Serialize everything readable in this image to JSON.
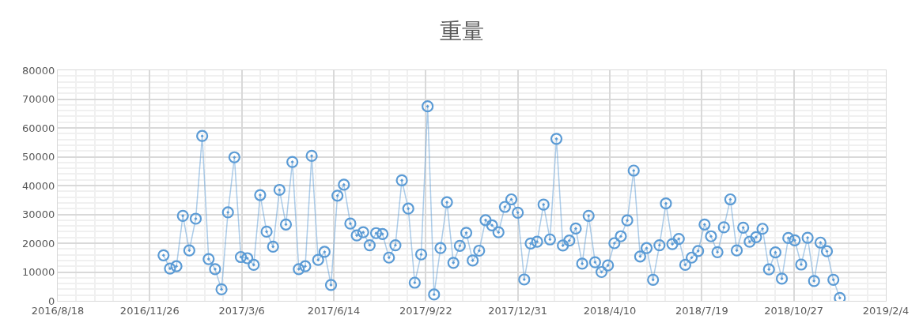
{
  "chart_data": {
    "type": "line",
    "title": "重量",
    "x": [
      "2016-12-11",
      "2016-12-18",
      "2016-12-25",
      "2017-01-01",
      "2017-01-08",
      "2017-01-15",
      "2017-01-22",
      "2017-01-29",
      "2017-02-05",
      "2017-02-12",
      "2017-02-19",
      "2017-02-26",
      "2017-03-05",
      "2017-03-12",
      "2017-03-19",
      "2017-03-26",
      "2017-04-02",
      "2017-04-09",
      "2017-04-16",
      "2017-04-23",
      "2017-04-30",
      "2017-05-07",
      "2017-05-14",
      "2017-05-21",
      "2017-05-28",
      "2017-06-04",
      "2017-06-11",
      "2017-06-18",
      "2017-06-25",
      "2017-07-02",
      "2017-07-09",
      "2017-07-16",
      "2017-07-23",
      "2017-07-30",
      "2017-08-06",
      "2017-08-13",
      "2017-08-20",
      "2017-08-27",
      "2017-09-03",
      "2017-09-10",
      "2017-09-17",
      "2017-09-24",
      "2017-10-01",
      "2017-10-08",
      "2017-10-15",
      "2017-10-22",
      "2017-10-29",
      "2017-11-05",
      "2017-11-12",
      "2017-11-19",
      "2017-11-26",
      "2017-12-03",
      "2017-12-10",
      "2017-12-17",
      "2017-12-24",
      "2017-12-31",
      "2018-01-07",
      "2018-01-14",
      "2018-01-21",
      "2018-01-28",
      "2018-02-04",
      "2018-02-11",
      "2018-02-18",
      "2018-02-25",
      "2018-03-04",
      "2018-03-11",
      "2018-03-18",
      "2018-03-25",
      "2018-04-01",
      "2018-04-08",
      "2018-04-15",
      "2018-04-22",
      "2018-04-29",
      "2018-05-06",
      "2018-05-13",
      "2018-05-20",
      "2018-05-27",
      "2018-06-03",
      "2018-06-10",
      "2018-06-17",
      "2018-06-24",
      "2018-07-01",
      "2018-07-08",
      "2018-07-15",
      "2018-07-22",
      "2018-07-29",
      "2018-08-05",
      "2018-08-12",
      "2018-08-19",
      "2018-08-26",
      "2018-09-02",
      "2018-09-09",
      "2018-09-16",
      "2018-09-23",
      "2018-09-30",
      "2018-10-07",
      "2018-10-14",
      "2018-10-21",
      "2018-10-28",
      "2018-11-04",
      "2018-11-11",
      "2018-11-18",
      "2018-11-25",
      "2018-12-02",
      "2018-12-09",
      "2018-12-16"
    ],
    "series": [
      {
        "color": "#5b9bd5",
        "values": [
          15800,
          11200,
          12000,
          29500,
          17500,
          28500,
          57200,
          14500,
          11000,
          4000,
          30700,
          49800,
          15200,
          14800,
          12500,
          36700,
          24000,
          18800,
          38500,
          26500,
          48200,
          11000,
          12000,
          50300,
          14200,
          17000,
          5500,
          36500,
          40300,
          26800,
          22700,
          23800,
          19300,
          23500,
          23200,
          15000,
          19300,
          41800,
          32000,
          6300,
          16100,
          67500,
          2200,
          18300,
          34200,
          13200,
          19100,
          23600,
          14000,
          17400,
          28000,
          26200,
          23800,
          32600,
          35200,
          30600,
          7400,
          19900,
          20500,
          33400,
          21300,
          56200,
          19200,
          20900,
          25100,
          12900,
          29500,
          13400,
          10000,
          12300,
          20000,
          22400,
          27900,
          45200,
          15400,
          18300,
          7300,
          19300,
          33800,
          19700,
          21500,
          12500,
          15000,
          17300,
          26500,
          22400,
          16900,
          25500,
          35200,
          17500,
          25400,
          20500,
          22100,
          25000,
          10900,
          16800,
          7700,
          21800,
          21000,
          12600,
          21900,
          6900,
          20200,
          17200,
          7300,
          1000
        ]
      }
    ],
    "xlim": [
      "2016-08-18",
      "2019-02-04"
    ],
    "xticks": [
      {
        "value": "2016-08-18",
        "label": "2016/8/18"
      },
      {
        "value": "2016-11-26",
        "label": "2016/11/26"
      },
      {
        "value": "2017-03-06",
        "label": "2017/3/6"
      },
      {
        "value": "2017-06-14",
        "label": "2017/6/14"
      },
      {
        "value": "2017-09-22",
        "label": "2017/9/22"
      },
      {
        "value": "2017-12-31",
        "label": "2017/12/31"
      },
      {
        "value": "2018-04-10",
        "label": "2018/4/10"
      },
      {
        "value": "2018-07-19",
        "label": "2018/7/19"
      },
      {
        "value": "2018-10-27",
        "label": "2018/10/27"
      },
      {
        "value": "2019-02-04",
        "label": "2019/2/4"
      }
    ],
    "ylim": [
      0,
      80000
    ],
    "yticks": [
      0,
      10000,
      20000,
      30000,
      40000,
      50000,
      60000,
      70000,
      80000
    ],
    "grid": true,
    "marker": "circle",
    "line_style": "solid"
  }
}
